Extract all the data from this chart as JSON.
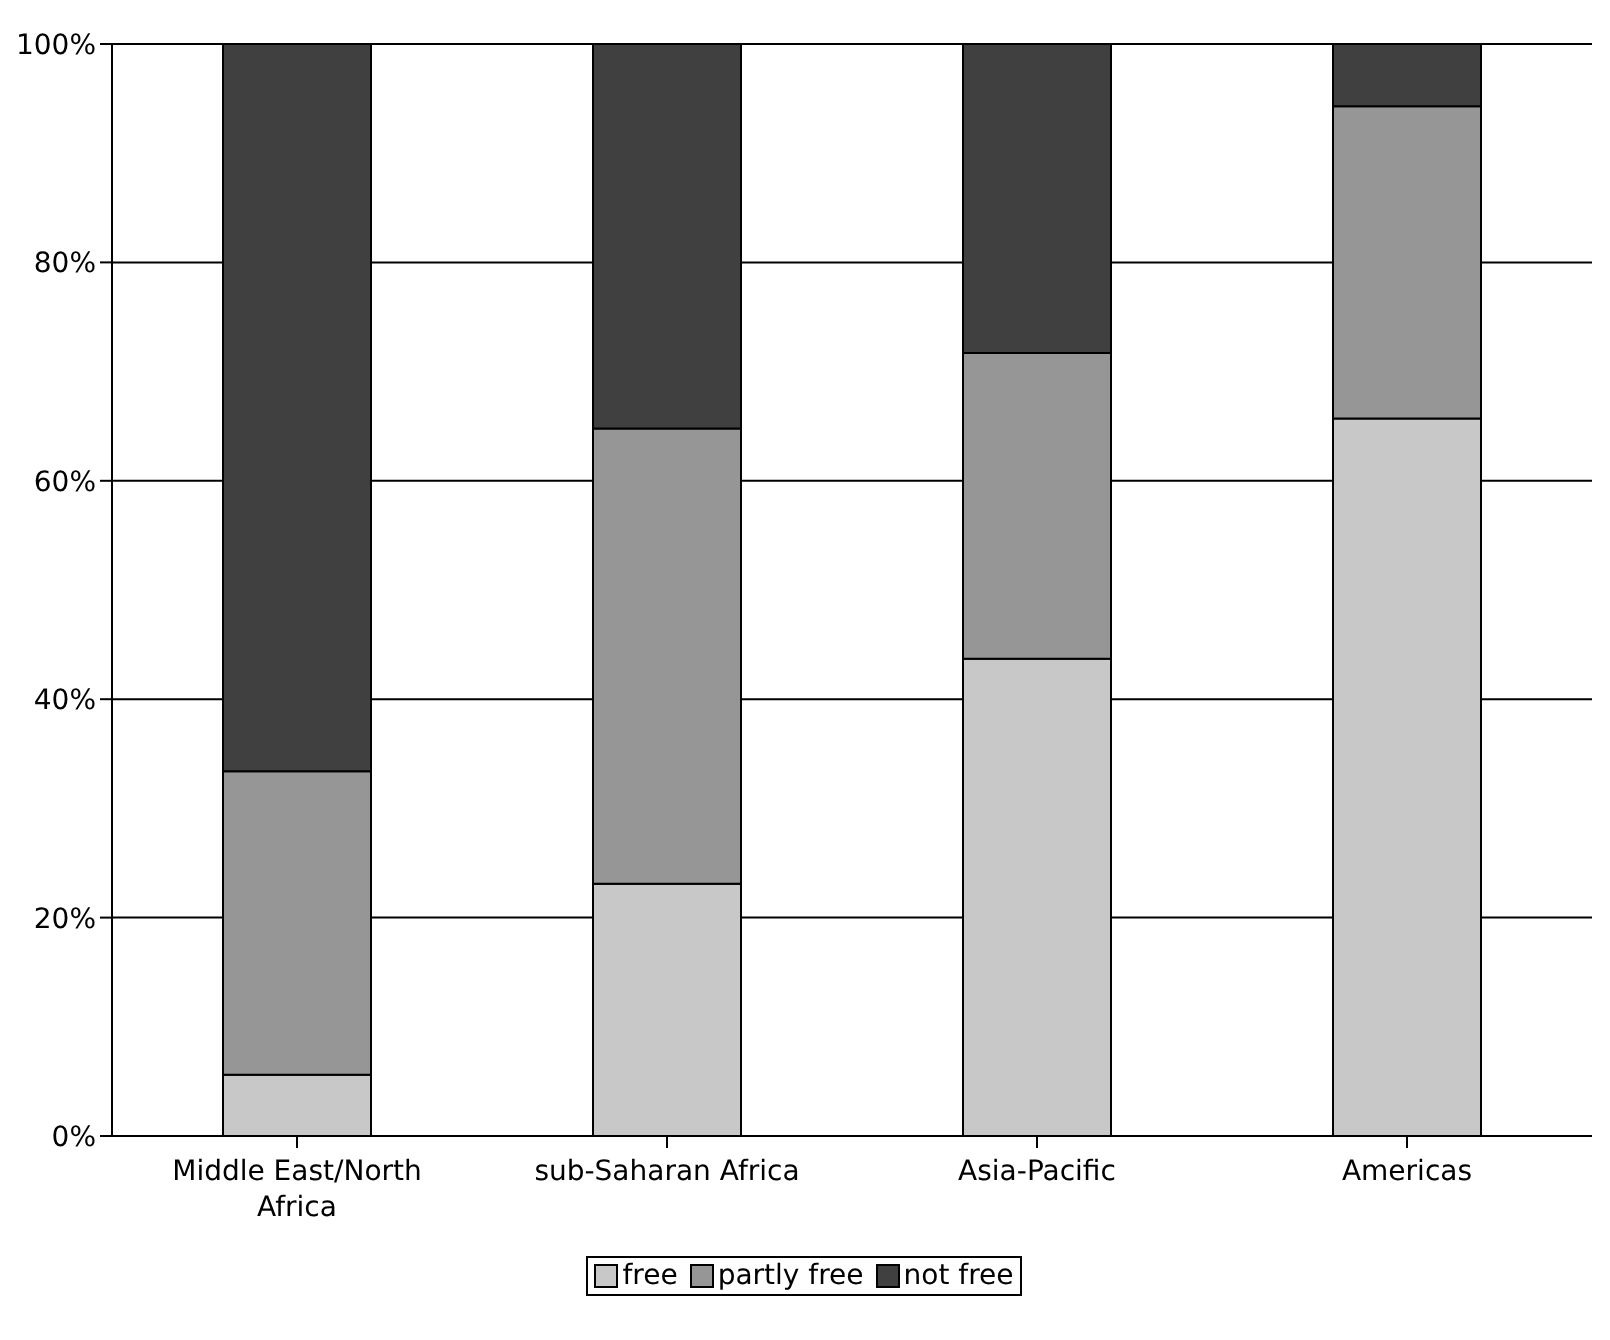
{
  "chart_data": {
    "type": "bar",
    "stacked": true,
    "categories": [
      "Middle East/North Africa",
      "sub-Saharan Africa",
      "Asia-Pacific",
      "Americas"
    ],
    "series": [
      {
        "name": "free",
        "color": "#c8c8c8",
        "values": [
          5.6,
          23.1,
          43.7,
          65.7
        ]
      },
      {
        "name": "partly free",
        "color": "#969696",
        "values": [
          27.8,
          41.7,
          28,
          28.6
        ]
      },
      {
        "name": "not free",
        "color": "#404040",
        "values": [
          66.6,
          35.2,
          28.3,
          5.7
        ]
      }
    ],
    "ylim": [
      0,
      100
    ],
    "yticks": [
      {
        "value": 0,
        "label": "0%"
      },
      {
        "value": 20,
        "label": "20%"
      },
      {
        "value": 40,
        "label": "40%"
      },
      {
        "value": 60,
        "label": "60%"
      },
      {
        "value": 80,
        "label": "80%"
      },
      {
        "value": 100,
        "label": "100%"
      }
    ],
    "grid": "y",
    "legend": "bottom"
  }
}
